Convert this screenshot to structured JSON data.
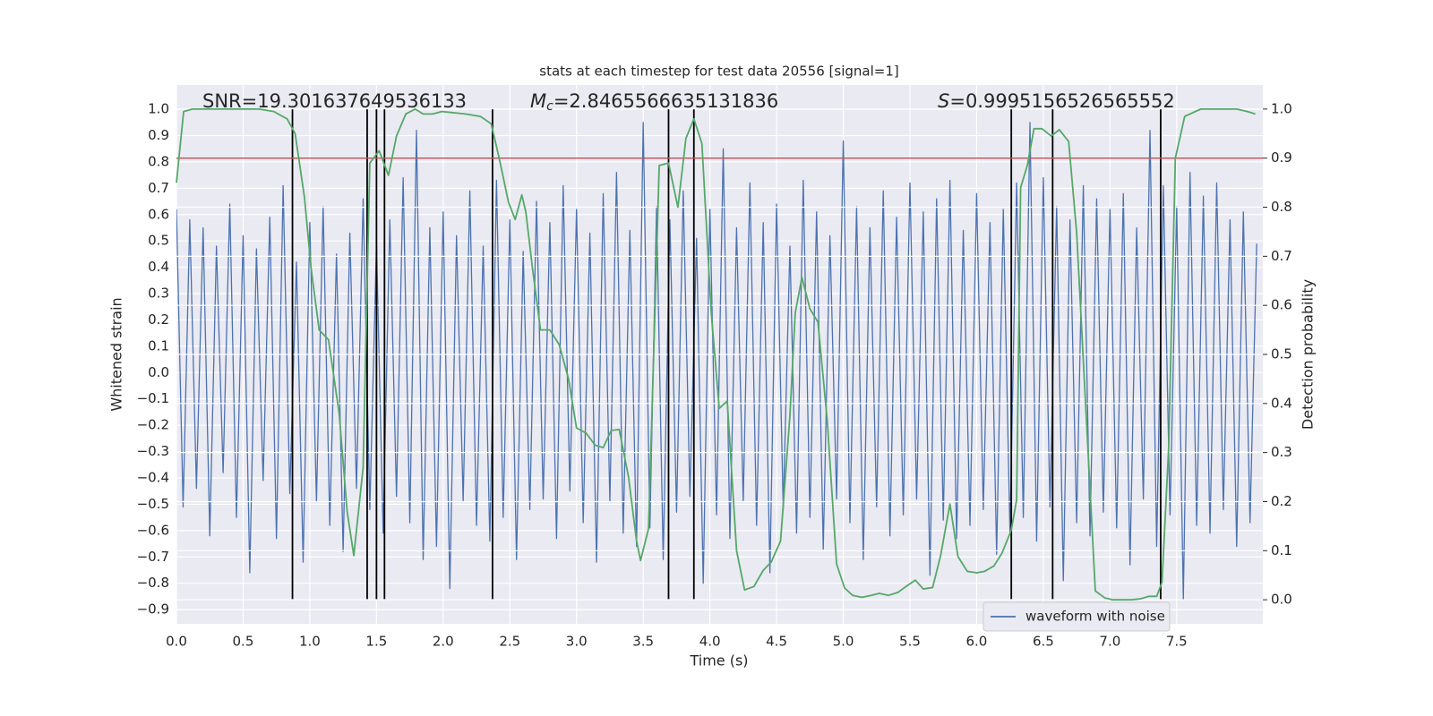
{
  "chart_data": {
    "type": "line",
    "title": "stats at each timestep for test data 20556 [signal=1]",
    "xlabel": "Time (s)",
    "ylabel": "Whitened strain",
    "y2label": "Detection probability",
    "annotations": [
      {
        "text": "SNR=19.301637649536133"
      },
      {
        "symbol": "M",
        "subscript": "c",
        "text": "=2.8465566635131836"
      },
      {
        "symbol": "S",
        "text": "=0.9995156526565552"
      }
    ],
    "xlim": [
      0,
      8.146
    ],
    "ylim": [
      -0.954,
      1.092
    ],
    "y2lim": [
      -0.049,
      1.049
    ],
    "grid": true,
    "legend": "lower right",
    "xticks": [
      {
        "value": 0,
        "label": "0.0"
      },
      {
        "value": 0.5,
        "label": "0.5"
      },
      {
        "value": 1,
        "label": "1.0"
      },
      {
        "value": 1.5,
        "label": "1.5"
      },
      {
        "value": 2,
        "label": "2.0"
      },
      {
        "value": 2.5,
        "label": "2.5"
      },
      {
        "value": 3,
        "label": "3.0"
      },
      {
        "value": 3.5,
        "label": "3.5"
      },
      {
        "value": 4,
        "label": "4.0"
      },
      {
        "value": 4.5,
        "label": "4.5"
      },
      {
        "value": 5,
        "label": "5.0"
      },
      {
        "value": 5.5,
        "label": "5.5"
      },
      {
        "value": 6,
        "label": "6.0"
      },
      {
        "value": 6.5,
        "label": "6.5"
      },
      {
        "value": 7,
        "label": "7.0"
      },
      {
        "value": 7.5,
        "label": "7.5"
      }
    ],
    "yticks": [
      {
        "value": 1,
        "label": "1.0"
      },
      {
        "value": 0.9,
        "label": "0.9"
      },
      {
        "value": 0.8,
        "label": "0.8"
      },
      {
        "value": 0.7,
        "label": "0.7"
      },
      {
        "value": 0.6,
        "label": "0.6"
      },
      {
        "value": 0.5,
        "label": "0.5"
      },
      {
        "value": 0.4,
        "label": "0.4"
      },
      {
        "value": 0.3,
        "label": "0.3"
      },
      {
        "value": 0.2,
        "label": "0.2"
      },
      {
        "value": 0.1,
        "label": "0.1"
      },
      {
        "value": 0,
        "label": "0.0"
      },
      {
        "value": -0.1,
        "label": "−0.1"
      },
      {
        "value": -0.2,
        "label": "−0.2"
      },
      {
        "value": -0.3,
        "label": "−0.3"
      },
      {
        "value": -0.4,
        "label": "−0.4"
      },
      {
        "value": -0.5,
        "label": "−0.5"
      },
      {
        "value": -0.6,
        "label": "−0.6"
      },
      {
        "value": -0.7,
        "label": "−0.7"
      },
      {
        "value": -0.8,
        "label": "−0.8"
      },
      {
        "value": -0.9,
        "label": "−0.9"
      }
    ],
    "y2ticks": [
      {
        "value": 0,
        "label": "0.0"
      },
      {
        "value": 0.1,
        "label": "0.1"
      },
      {
        "value": 0.2,
        "label": "0.2"
      },
      {
        "value": 0.3,
        "label": "0.3"
      },
      {
        "value": 0.4,
        "label": "0.4"
      },
      {
        "value": 0.5,
        "label": "0.5"
      },
      {
        "value": 0.6,
        "label": "0.6"
      },
      {
        "value": 0.7,
        "label": "0.7"
      },
      {
        "value": 0.8,
        "label": "0.8"
      },
      {
        "value": 0.9,
        "label": "0.9"
      },
      {
        "value": 1,
        "label": "1.0"
      }
    ],
    "series": [
      {
        "name": "waveform with noise",
        "color": "#4c72b0",
        "x": [
          0,
          0.05,
          0.1,
          0.15,
          0.2,
          0.25,
          0.3,
          0.35,
          0.4,
          0.45,
          0.5,
          0.55,
          0.6,
          0.65,
          0.7,
          0.75,
          0.8,
          0.85,
          0.9,
          0.95,
          1,
          1.05,
          1.1,
          1.15,
          1.2,
          1.25,
          1.3,
          1.35,
          1.4,
          1.45,
          1.5,
          1.55,
          1.6,
          1.65,
          1.7,
          1.75,
          1.8,
          1.85,
          1.9,
          1.95,
          2,
          2.05,
          2.1,
          2.15,
          2.2,
          2.25,
          2.3,
          2.35,
          2.4,
          2.45,
          2.5,
          2.55,
          2.6,
          2.65,
          2.7,
          2.75,
          2.8,
          2.85,
          2.9,
          2.95,
          3,
          3.05,
          3.1,
          3.15,
          3.2,
          3.25,
          3.3,
          3.35,
          3.4,
          3.45,
          3.5,
          3.55,
          3.6,
          3.65,
          3.7,
          3.75,
          3.8,
          3.85,
          3.9,
          3.95,
          4,
          4.05,
          4.1,
          4.15,
          4.2,
          4.25,
          4.3,
          4.35,
          4.4,
          4.45,
          4.5,
          4.55,
          4.6,
          4.65,
          4.7,
          4.75,
          4.8,
          4.85,
          4.9,
          4.95,
          5,
          5.05,
          5.1,
          5.15,
          5.2,
          5.25,
          5.3,
          5.35,
          5.4,
          5.45,
          5.5,
          5.55,
          5.6,
          5.65,
          5.7,
          5.75,
          5.8,
          5.85,
          5.9,
          5.95,
          6,
          6.05,
          6.1,
          6.15,
          6.2,
          6.25,
          6.3,
          6.35,
          6.4,
          6.45,
          6.5,
          6.55,
          6.6,
          6.65,
          6.7,
          6.75,
          6.8,
          6.85,
          6.9,
          6.95,
          7,
          7.05,
          7.1,
          7.15,
          7.2,
          7.25,
          7.3,
          7.35,
          7.4,
          7.45,
          7.5,
          7.55,
          7.6,
          7.65,
          7.7,
          7.75,
          7.8,
          7.85,
          7.9,
          7.95,
          8,
          8.05,
          8.1
        ],
        "values": [
          0.62,
          -0.51,
          0.58,
          -0.44,
          0.55,
          -0.62,
          0.48,
          -0.38,
          0.64,
          -0.55,
          0.52,
          -0.76,
          0.47,
          -0.41,
          0.59,
          -0.63,
          0.71,
          -0.46,
          0.42,
          -0.72,
          0.57,
          -0.49,
          0.63,
          -0.58,
          0.45,
          -0.68,
          0.53,
          -0.44,
          0.66,
          -0.52,
          0.49,
          -0.61,
          0.58,
          -0.47,
          0.74,
          -0.57,
          0.92,
          -0.71,
          0.55,
          -0.66,
          0.61,
          -0.82,
          0.52,
          -0.49,
          0.69,
          -0.58,
          0.48,
          -0.64,
          0.73,
          -0.55,
          0.58,
          -0.71,
          0.46,
          -0.52,
          0.65,
          -0.48,
          0.57,
          -0.63,
          0.71,
          -0.45,
          0.62,
          -0.57,
          0.53,
          -0.72,
          0.68,
          -0.49,
          0.76,
          -0.61,
          0.54,
          -0.66,
          0.95,
          -0.59,
          0.63,
          -0.71,
          0.58,
          -0.53,
          0.69,
          -0.47,
          0.51,
          -0.8,
          0.62,
          -0.54,
          0.85,
          -0.63,
          0.55,
          -0.49,
          0.72,
          -0.58,
          0.57,
          -0.76,
          0.64,
          -0.52,
          0.48,
          -0.61,
          0.73,
          -0.55,
          0.61,
          -0.67,
          0.52,
          -0.48,
          0.88,
          -0.57,
          0.63,
          -0.71,
          0.55,
          -0.51,
          0.69,
          -0.62,
          0.59,
          -0.54,
          0.72,
          -0.48,
          0.61,
          -0.77,
          0.66,
          -0.56,
          0.73,
          -0.63,
          0.54,
          -0.58,
          0.68,
          -0.52,
          0.57,
          -0.69,
          0.62,
          -0.61,
          0.72,
          -0.55,
          0.95,
          -0.64,
          0.74,
          -0.51,
          0.63,
          -0.79,
          0.58,
          -0.57,
          0.71,
          -0.62,
          0.66,
          -0.53,
          0.62,
          -0.59,
          0.68,
          -0.73,
          0.55,
          -0.48,
          0.92,
          -0.66,
          0.71,
          -0.54,
          0.63,
          -0.86,
          0.76,
          -0.58,
          0.67,
          -0.61,
          0.72,
          -0.52,
          0.58,
          -0.66,
          0.61,
          -0.57,
          0.49
        ]
      },
      {
        "color": "#55a868",
        "axis": "y2",
        "x": [
          0,
          0.054,
          0.12,
          0.62,
          0.73,
          0.83,
          0.89,
          0.96,
          1.01,
          1.07,
          1.14,
          1.22,
          1.28,
          1.33,
          1.4,
          1.45,
          1.52,
          1.59,
          1.65,
          1.72,
          1.79,
          1.85,
          1.92,
          1.99,
          2.06,
          2.17,
          2.28,
          2.36,
          2.42,
          2.49,
          2.54,
          2.59,
          2.62,
          2.67,
          2.73,
          2.8,
          2.87,
          2.94,
          3,
          3.07,
          3.14,
          3.2,
          3.26,
          3.32,
          3.39,
          3.45,
          3.48,
          3.54,
          3.62,
          3.69,
          3.76,
          3.82,
          3.88,
          3.94,
          4.01,
          4.07,
          4.13,
          4.2,
          4.26,
          4.33,
          4.4,
          4.46,
          4.53,
          4.6,
          4.64,
          4.69,
          4.75,
          4.81,
          4.88,
          4.95,
          5.01,
          5.07,
          5.14,
          5.21,
          5.27,
          5.34,
          5.41,
          5.47,
          5.54,
          5.6,
          5.67,
          5.73,
          5.8,
          5.86,
          5.93,
          6,
          6.06,
          6.13,
          6.19,
          6.26,
          6.3,
          6.33,
          6.38,
          6.43,
          6.49,
          6.56,
          6.62,
          6.69,
          6.75,
          6.82,
          6.89,
          6.96,
          7.02,
          7.09,
          7.16,
          7.23,
          7.29,
          7.35,
          7.39,
          7.44,
          7.49,
          7.56,
          7.68,
          7.95,
          8.03,
          8.09
        ],
        "values": [
          0.85,
          0.995,
          1,
          1,
          0.995,
          0.98,
          0.95,
          0.82,
          0.675,
          0.55,
          0.53,
          0.38,
          0.18,
          0.09,
          0.27,
          0.89,
          0.915,
          0.865,
          0.945,
          0.99,
          1,
          0.99,
          0.99,
          0.995,
          0.993,
          0.99,
          0.985,
          0.97,
          0.9,
          0.81,
          0.775,
          0.825,
          0.79,
          0.675,
          0.55,
          0.55,
          0.52,
          0.45,
          0.35,
          0.34,
          0.315,
          0.31,
          0.345,
          0.347,
          0.25,
          0.12,
          0.08,
          0.145,
          0.885,
          0.89,
          0.8,
          0.94,
          0.98,
          0.93,
          0.585,
          0.39,
          0.405,
          0.1,
          0.02,
          0.027,
          0.06,
          0.077,
          0.12,
          0.375,
          0.585,
          0.657,
          0.593,
          0.566,
          0.365,
          0.073,
          0.024,
          0.009,
          0.005,
          0.009,
          0.013,
          0.009,
          0.015,
          0.027,
          0.04,
          0.022,
          0.025,
          0.09,
          0.195,
          0.088,
          0.058,
          0.055,
          0.058,
          0.069,
          0.095,
          0.142,
          0.204,
          0.84,
          0.885,
          0.96,
          0.96,
          0.945,
          0.958,
          0.934,
          0.748,
          0.383,
          0.018,
          0.004,
          0,
          0,
          0,
          0.002,
          0.007,
          0.007,
          0.036,
          0.31,
          0.9,
          0.985,
          1,
          1,
          0.995,
          0.99
        ]
      }
    ],
    "vlines": {
      "x": [
        0.87,
        1.43,
        1.5,
        1.56,
        2.37,
        3.69,
        3.88,
        6.26,
        6.57,
        7.38
      ],
      "from": -0.86,
      "to": 1.0,
      "color": "#000000"
    },
    "hline": {
      "y": 0.9,
      "axis": "y2",
      "color": "#c44e52"
    }
  }
}
